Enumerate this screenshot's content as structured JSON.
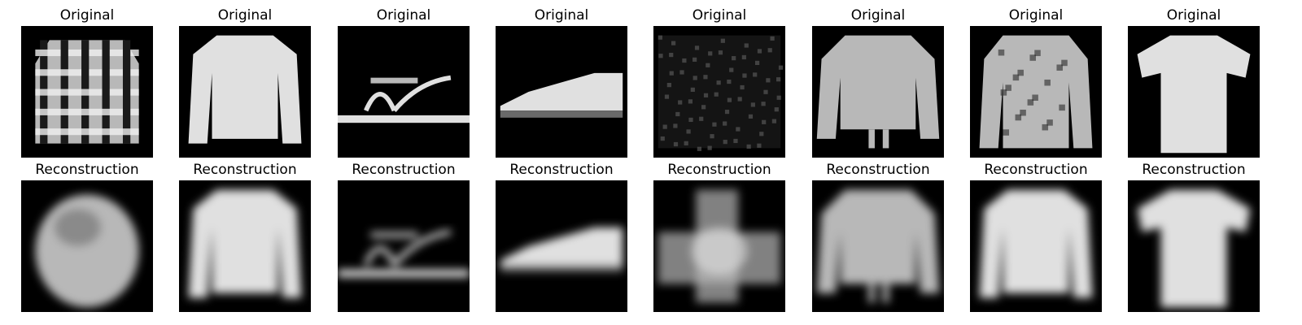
{
  "rows": [
    {
      "id": "original",
      "title": "Original",
      "images": [
        {
          "item": "plaid-shirt-icon",
          "quality": "sharp"
        },
        {
          "item": "long-sleeve-top-icon",
          "quality": "sharp"
        },
        {
          "item": "sandal-icon",
          "quality": "sharp"
        },
        {
          "item": "sneaker-icon",
          "quality": "sharp"
        },
        {
          "item": "noisy-square-icon",
          "quality": "sharp"
        },
        {
          "item": "sweater-icon",
          "quality": "sharp"
        },
        {
          "item": "patterned-coat-icon",
          "quality": "sharp"
        },
        {
          "item": "t-shirt-icon",
          "quality": "sharp"
        }
      ]
    },
    {
      "id": "reconstruction",
      "title": "Reconstruction",
      "images": [
        {
          "item": "blurry-blob-icon",
          "quality": "blurry"
        },
        {
          "item": "long-sleeve-top-icon",
          "quality": "blurry"
        },
        {
          "item": "sandal-icon",
          "quality": "blurry"
        },
        {
          "item": "sneaker-icon",
          "quality": "blurry"
        },
        {
          "item": "blurry-cross-icon",
          "quality": "blurry"
        },
        {
          "item": "sweater-icon",
          "quality": "blurry"
        },
        {
          "item": "long-sleeve-top-icon",
          "quality": "blurry"
        },
        {
          "item": "t-shirt-icon",
          "quality": "blurry"
        }
      ]
    }
  ],
  "colors": {
    "background": "#ffffff",
    "panel": "#000000",
    "garment_light": "#e0e0e0",
    "garment_mid": "#b8b8b8",
    "garment_dark": "#6a6a6a"
  }
}
